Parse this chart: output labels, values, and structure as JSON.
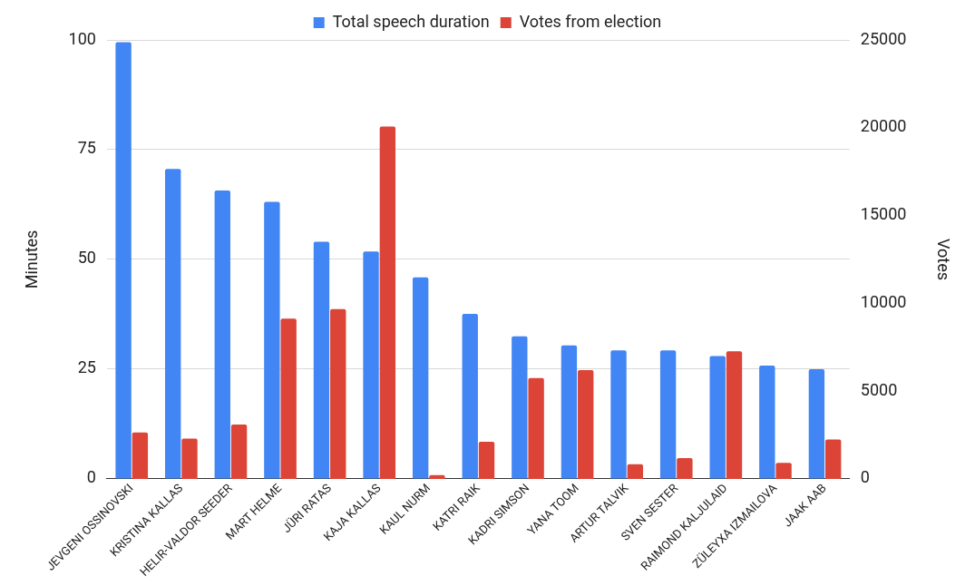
{
  "chart_data": {
    "type": "bar",
    "ylabel": "Minutes",
    "y2label": "Votes",
    "categories": [
      "JEVGENI OSSINOVSKI",
      "KRISTINA KALLAS",
      "HELIR-VALDOR SEEDER",
      "MART HELME",
      "JÜRI RATAS",
      "KAJA KALLAS",
      "KAUL NURM",
      "KATRI RAIK",
      "KADRI SIMSON",
      "YANA TOOM",
      "ARTUR TALVIK",
      "SVEN SESTER",
      "RAIMOND KALJULAID",
      "ZÜLEYXA IZMAILOVA",
      "JAAK AAB"
    ],
    "series": [
      {
        "name": "Total speech duration",
        "color": "#4285f4",
        "values": [
          99.5,
          70.6,
          65.7,
          63.1,
          54.0,
          51.8,
          45.9,
          37.6,
          32.5,
          30.4,
          29.3,
          29.3,
          28.0,
          25.8,
          25.0
        ]
      },
      {
        "name": "Votes from election",
        "color": "#db4437",
        "axis": "y2",
        "values": [
          2650,
          2300,
          3100,
          9130,
          9670,
          20070,
          220,
          2120,
          5740,
          6190,
          840,
          1180,
          7270,
          920,
          2240
        ]
      }
    ],
    "ylim": [
      0,
      100
    ],
    "yticks": [
      0,
      25,
      50,
      75,
      100
    ],
    "y2lim": [
      0,
      25000
    ],
    "y2ticks": [
      0,
      5000,
      10000,
      15000,
      20000,
      25000
    ],
    "grid": "y",
    "legend": "top"
  }
}
